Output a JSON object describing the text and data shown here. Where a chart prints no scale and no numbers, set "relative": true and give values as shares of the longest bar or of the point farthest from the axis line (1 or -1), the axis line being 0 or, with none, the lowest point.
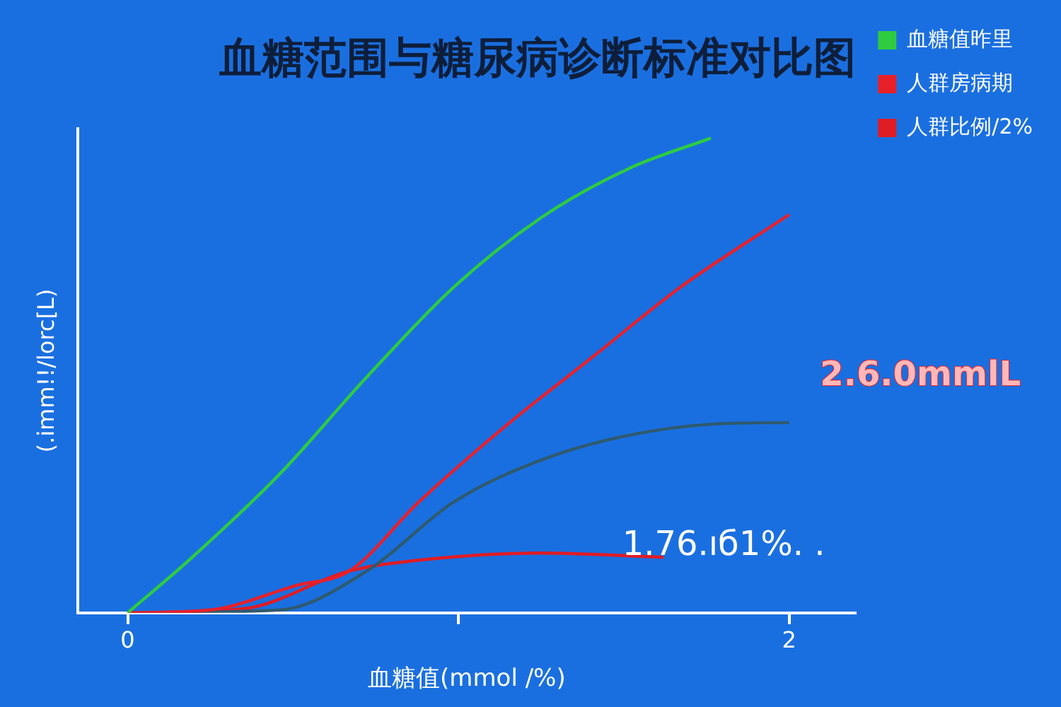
{
  "chart_data": {
    "type": "line",
    "title": "血糖范围与糖尿病诊断标准对比图",
    "xlabel": "血糖值(mmol /%)",
    "ylabel": "(.imm!!/lorc[L)",
    "relative": true,
    "xlim": [
      -0.15,
      2.2
    ],
    "xticks": [
      0,
      {
        "value": 1,
        "label": null
      },
      2
    ],
    "legend": "top right",
    "grid": false,
    "marker": "none",
    "annotations": [
      "2.6.0mmlL",
      "1.76.ıб1%. ."
    ],
    "series": [
      {
        "name": "血糖值昨里",
        "color": "#2ecc40",
        "x": [
          0,
          0.195,
          0.459,
          0.723,
          0.987,
          1.251,
          1.515,
          1.763
        ],
        "values": [
          0,
          0.117,
          0.292,
          0.497,
          0.687,
          0.833,
          0.936,
          1
        ]
      },
      {
        "name": "人群房病期",
        "color": "#e8202a",
        "x": [
          0,
          0.248,
          0.512,
          0.67,
          0.881,
          1.145,
          1.409,
          1.673,
          2
        ],
        "values": [
          0,
          0.006,
          0.058,
          0.088,
          0.234,
          0.395,
          0.541,
          0.687,
          0.839
        ]
      },
      {
        "color": "#2f5a6e",
        "x": [
          0,
          0.459,
          0.723,
          0.987,
          1.251,
          1.515,
          1.778,
          2
        ],
        "values": [
          0,
          0.006,
          0.088,
          0.234,
          0.322,
          0.374,
          0.398,
          0.401
        ]
      },
      {
        "name": "人群比例/2%",
        "color": "#e01c24",
        "x": [
          0,
          0.354,
          0.67,
          0.881,
          1.251,
          1.62
        ],
        "values": [
          0,
          0.009,
          0.088,
          0.111,
          0.126,
          0.117
        ]
      }
    ]
  }
}
